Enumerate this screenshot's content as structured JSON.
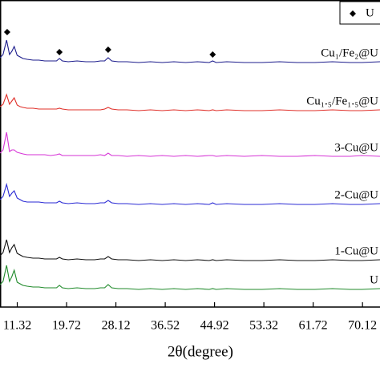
{
  "chart_data": {
    "type": "line",
    "x_label": "2θ(degree)",
    "xlim": [
      8.38,
      73.1
    ],
    "ylim": [
      0,
      383
    ],
    "xticks": [
      11.32,
      19.72,
      28.12,
      36.52,
      44.92,
      53.32,
      61.72,
      70.12
    ],
    "x": [
      8.4,
      8.9,
      9.5,
      10.0,
      10.4,
      10.8,
      11.3,
      11.8,
      12.3,
      13,
      14,
      15,
      16,
      17,
      18,
      18.5,
      19,
      20,
      21.5,
      23,
      24.5,
      25.5,
      26.2,
      26.8,
      27.4,
      28.5,
      30,
      32,
      34,
      36,
      38,
      40,
      42,
      44,
      44.6,
      45.2,
      47,
      50,
      53,
      56,
      59,
      62,
      65,
      68,
      70,
      73.1
    ],
    "series": [
      {
        "name": "Cu₁/Fe₂@U",
        "color": "#1c1c8c",
        "values": [
          311,
          315,
          333,
          315,
          319,
          325,
          314,
          312,
          310,
          309,
          308,
          308,
          307,
          307,
          307,
          310,
          307,
          306,
          307,
          306,
          306,
          307,
          307,
          311,
          307,
          306,
          306,
          305,
          306,
          305,
          306,
          305,
          306,
          305,
          307,
          305,
          306,
          305,
          305,
          306,
          305,
          305,
          306,
          305,
          305,
          306
        ]
      },
      {
        "name": "Cu₁.₅/Fe₁.₅@U",
        "color": "#e0302a",
        "values": [
          250,
          253,
          265,
          253,
          257,
          261,
          252,
          250,
          249,
          248,
          248,
          247,
          247,
          247,
          247,
          248,
          247,
          246,
          246,
          246,
          246,
          246,
          247,
          249,
          247,
          246,
          246,
          245,
          246,
          245,
          246,
          245,
          246,
          245,
          246,
          245,
          246,
          245,
          245,
          246,
          245,
          245,
          246,
          245,
          245,
          246
        ]
      },
      {
        "name": "3-Cu@U",
        "color": "#d633d6",
        "values": [
          192,
          196,
          218,
          194,
          196,
          196,
          193,
          192,
          191,
          190,
          190,
          190,
          190,
          189,
          190,
          191,
          189,
          189,
          189,
          189,
          189,
          190,
          189,
          192,
          189,
          189,
          188,
          189,
          188,
          189,
          188,
          189,
          188,
          189,
          189,
          188,
          189,
          188,
          189,
          188,
          188,
          189,
          188,
          188,
          189,
          188
        ]
      },
      {
        "name": "2-Cu@U",
        "color": "#2a2ad4",
        "values": [
          134,
          138,
          153,
          138,
          142,
          145,
          136,
          134,
          132,
          131,
          131,
          131,
          130,
          130,
          130,
          132,
          130,
          129,
          130,
          129,
          129,
          130,
          130,
          133,
          130,
          129,
          129,
          128,
          129,
          128,
          129,
          128,
          129,
          128,
          130,
          128,
          129,
          128,
          128,
          129,
          128,
          128,
          129,
          128,
          128,
          129
        ]
      },
      {
        "name": "1-Cu@U",
        "color": "#111111",
        "values": [
          64,
          68,
          84,
          68,
          74,
          78,
          67,
          65,
          63,
          62,
          61,
          61,
          60,
          60,
          60,
          62,
          60,
          59,
          60,
          59,
          59,
          60,
          60,
          63,
          60,
          59,
          59,
          58,
          59,
          58,
          59,
          58,
          59,
          58,
          59,
          58,
          59,
          58,
          58,
          59,
          58,
          58,
          59,
          58,
          58,
          59
        ]
      },
      {
        "name": "U",
        "color": "#1f8a2a",
        "values": [
          28,
          32,
          52,
          32,
          38,
          46,
          31,
          29,
          27,
          26,
          25,
          25,
          24,
          24,
          24,
          27,
          24,
          23,
          24,
          23,
          23,
          24,
          24,
          28,
          24,
          23,
          23,
          22,
          23,
          22,
          23,
          22,
          23,
          22,
          23,
          22,
          23,
          22,
          22,
          23,
          22,
          22,
          23,
          22,
          22,
          23
        ]
      }
    ],
    "markers": {
      "name": "U",
      "symbol": "diamond",
      "color": "#000000",
      "x": [
        9.6,
        18.5,
        26.8,
        44.6
      ],
      "y": [
        343,
        318,
        321,
        315
      ]
    },
    "legend": "top-right"
  }
}
